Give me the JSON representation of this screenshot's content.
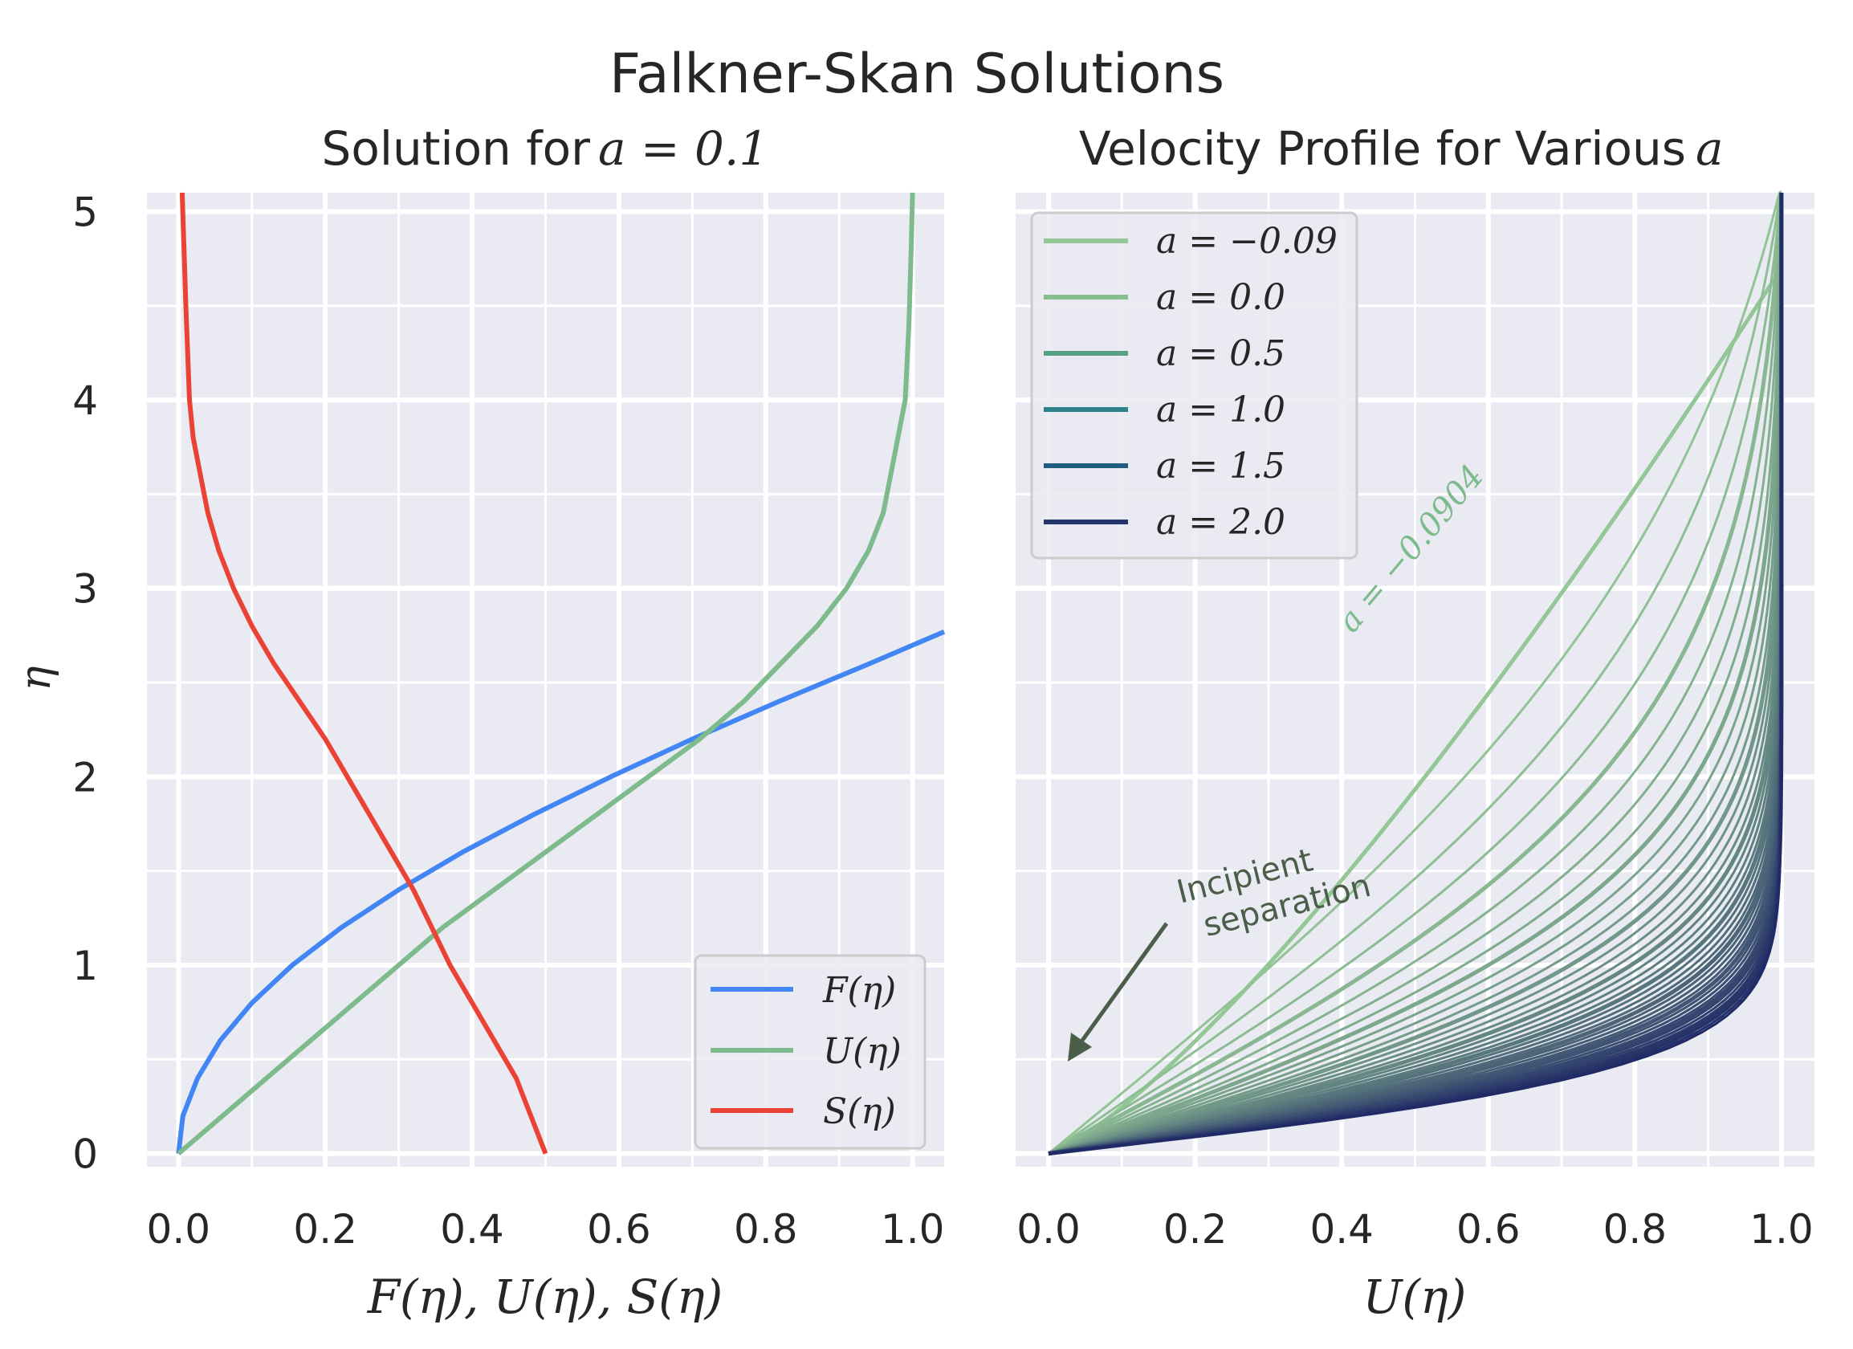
{
  "figure": {
    "suptitle": "Falkner-Skan Solutions",
    "y_axis_label": "η",
    "y_ticks": [
      "0",
      "1",
      "2",
      "3",
      "4",
      "5"
    ]
  },
  "chart_data": [
    {
      "type": "line",
      "title_prefix": "Solution for",
      "title_math": "a = 0.1",
      "xlabel": "F(η), U(η), S(η)",
      "ylabel": "η",
      "xlim": [
        -0.043,
        1.043
      ],
      "ylim": [
        -0.07,
        5.1
      ],
      "xticks": [
        "0.0",
        "0.2",
        "0.4",
        "0.6",
        "0.8",
        "1.0"
      ],
      "yticks": [
        "0",
        "1",
        "2",
        "3",
        "4",
        "5"
      ],
      "legend_position": "lower-right",
      "series": [
        {
          "name": "F(η)",
          "color": "#4285f4",
          "points": [
            [
              0,
              0
            ],
            [
              0.006,
              0.2
            ],
            [
              0.026,
              0.4
            ],
            [
              0.057,
              0.6
            ],
            [
              0.1,
              0.8
            ],
            [
              0.155,
              1.0
            ],
            [
              0.222,
              1.2
            ],
            [
              0.3,
              1.4
            ],
            [
              0.387,
              1.6
            ],
            [
              0.484,
              1.8
            ],
            [
              0.589,
              2.0
            ],
            [
              0.7,
              2.2
            ],
            [
              0.818,
              2.4
            ],
            [
              0.941,
              2.6
            ],
            [
              1.043,
              2.77
            ]
          ]
        },
        {
          "name": "U(η)",
          "color": "#7dba8c",
          "points": [
            [
              0,
              0
            ],
            [
              0.06,
              0.2
            ],
            [
              0.12,
              0.4
            ],
            [
              0.18,
              0.6
            ],
            [
              0.24,
              0.8
            ],
            [
              0.3,
              1.0
            ],
            [
              0.36,
              1.2
            ],
            [
              0.43,
              1.4
            ],
            [
              0.5,
              1.6
            ],
            [
              0.57,
              1.8
            ],
            [
              0.64,
              2.0
            ],
            [
              0.71,
              2.2
            ],
            [
              0.77,
              2.4
            ],
            [
              0.82,
              2.6
            ],
            [
              0.87,
              2.8
            ],
            [
              0.91,
              3.0
            ],
            [
              0.94,
              3.2
            ],
            [
              0.96,
              3.4
            ],
            [
              0.97,
              3.6
            ],
            [
              0.98,
              3.8
            ],
            [
              0.99,
              4.0
            ],
            [
              0.995,
              4.4
            ],
            [
              0.998,
              4.8
            ],
            [
              1.0,
              5.1
            ]
          ]
        },
        {
          "name": "S(η)",
          "color": "#ea4335",
          "points": [
            [
              0.5,
              0
            ],
            [
              0.48,
              0.2
            ],
            [
              0.46,
              0.4
            ],
            [
              0.43,
              0.6
            ],
            [
              0.4,
              0.8
            ],
            [
              0.37,
              1.0
            ],
            [
              0.345,
              1.2
            ],
            [
              0.32,
              1.4
            ],
            [
              0.29,
              1.6
            ],
            [
              0.26,
              1.8
            ],
            [
              0.23,
              2.0
            ],
            [
              0.2,
              2.2
            ],
            [
              0.165,
              2.4
            ],
            [
              0.13,
              2.6
            ],
            [
              0.1,
              2.8
            ],
            [
              0.075,
              3.0
            ],
            [
              0.055,
              3.2
            ],
            [
              0.04,
              3.4
            ],
            [
              0.03,
              3.6
            ],
            [
              0.02,
              3.8
            ],
            [
              0.015,
              4.0
            ],
            [
              0.01,
              4.5
            ],
            [
              0.005,
              5.1
            ]
          ]
        }
      ]
    },
    {
      "type": "line",
      "title_prefix": "Velocity Profile for Various",
      "title_math": "a",
      "xlabel": "U(η)",
      "ylabel": "η",
      "xlim": [
        -0.045,
        1.045
      ],
      "ylim": [
        -0.07,
        5.1
      ],
      "xticks": [
        "0.0",
        "0.2",
        "0.4",
        "0.6",
        "0.8",
        "1.0"
      ],
      "yticks": [
        "0",
        "1",
        "2",
        "3",
        "4",
        "5"
      ],
      "legend_position": "upper-left",
      "legend": [
        {
          "label": "a = −0.09",
          "color": "#94c796"
        },
        {
          "label": "a = 0.0",
          "color": "#86bf8c"
        },
        {
          "label": "a = 0.5",
          "color": "#55a287"
        },
        {
          "label": "a = 1.0",
          "color": "#2d8188"
        },
        {
          "label": "a = 1.5",
          "color": "#1f5d80"
        },
        {
          "label": "a = 2.0",
          "color": "#23356c"
        }
      ],
      "family_range_a": [
        -0.0904,
        2.0
      ],
      "family_colors": [
        "#94c796",
        "#1f2a66"
      ],
      "annotations": [
        {
          "text": "a = −0.0904",
          "color": "#7dba8c"
        },
        {
          "text": "Incipient",
          "color": "#4a5e4a"
        },
        {
          "text": "separation",
          "color": "#4a5e4a"
        }
      ]
    }
  ]
}
